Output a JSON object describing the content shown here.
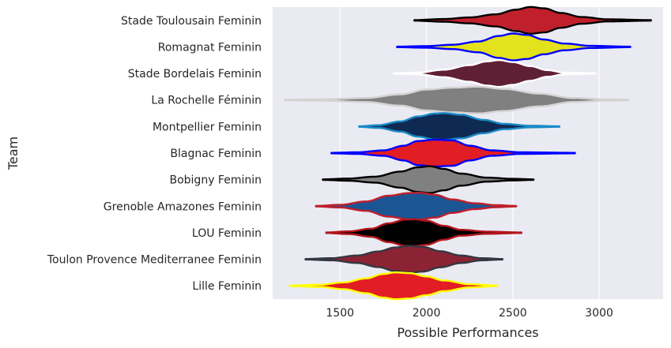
{
  "chart_data": {
    "type": "violin",
    "orientation": "horizontal",
    "xlabel": "Possible Performances",
    "ylabel": "Team",
    "xlim": [
      1110,
      3370
    ],
    "xticks": [
      1500,
      2000,
      2500,
      3000
    ],
    "grid": true,
    "background": "#eaeaf2",
    "series": [
      {
        "name": "Stade Toulousain Feminin",
        "fill": "#c0202c",
        "edge": "#000000",
        "min": 1930,
        "max": 3300,
        "profile": [
          [
            1930,
            0.02
          ],
          [
            2100,
            0.1
          ],
          [
            2250,
            0.22
          ],
          [
            2400,
            0.45
          ],
          [
            2520,
            0.8
          ],
          [
            2600,
            1.0
          ],
          [
            2680,
            0.9
          ],
          [
            2780,
            0.55
          ],
          [
            2900,
            0.25
          ],
          [
            3050,
            0.08
          ],
          [
            3300,
            0.02
          ]
        ]
      },
      {
        "name": "Romagnat Feminin",
        "fill": "#e3e21c",
        "edge": "#0000ff",
        "min": 1830,
        "max": 3180,
        "profile": [
          [
            1830,
            0.02
          ],
          [
            2000,
            0.06
          ],
          [
            2150,
            0.16
          ],
          [
            2300,
            0.4
          ],
          [
            2420,
            0.82
          ],
          [
            2500,
            1.0
          ],
          [
            2580,
            0.9
          ],
          [
            2680,
            0.55
          ],
          [
            2800,
            0.25
          ],
          [
            2950,
            0.08
          ],
          [
            3180,
            0.02
          ]
        ]
      },
      {
        "name": "Stade Bordelais Feminin",
        "fill": "#5f1f34",
        "edge": "#ffffff",
        "min": 1810,
        "max": 2980,
        "profile": [
          [
            1810,
            0.02
          ],
          [
            1950,
            0.06
          ],
          [
            2100,
            0.28
          ],
          [
            2250,
            0.62
          ],
          [
            2350,
            0.9
          ],
          [
            2420,
            1.0
          ],
          [
            2500,
            0.85
          ],
          [
            2600,
            0.55
          ],
          [
            2700,
            0.25
          ],
          [
            2800,
            0.06
          ],
          [
            2980,
            0.02
          ]
        ]
      },
      {
        "name": "La Rochelle Féminin",
        "fill": "#808080",
        "edge": "#d3d3d3",
        "min": 1180,
        "max": 3170,
        "profile": [
          [
            1180,
            0.02
          ],
          [
            1400,
            0.05
          ],
          [
            1650,
            0.15
          ],
          [
            1850,
            0.42
          ],
          [
            2000,
            0.78
          ],
          [
            2150,
            0.92
          ],
          [
            2300,
            1.0
          ],
          [
            2450,
            0.82
          ],
          [
            2650,
            0.48
          ],
          [
            2850,
            0.15
          ],
          [
            3050,
            0.04
          ],
          [
            3170,
            0.02
          ]
        ]
      },
      {
        "name": "Montpellier Feminin",
        "fill": "#0f2a52",
        "edge": "#1a8ac6",
        "min": 1610,
        "max": 2770,
        "profile": [
          [
            1610,
            0.02
          ],
          [
            1720,
            0.1
          ],
          [
            1850,
            0.38
          ],
          [
            1950,
            0.75
          ],
          [
            2050,
            0.97
          ],
          [
            2100,
            1.0
          ],
          [
            2200,
            0.88
          ],
          [
            2330,
            0.5
          ],
          [
            2450,
            0.2
          ],
          [
            2600,
            0.06
          ],
          [
            2770,
            0.02
          ]
        ]
      },
      {
        "name": "Blagnac Feminin",
        "fill": "#e21d23",
        "edge": "#0000ff",
        "min": 1450,
        "max": 2860,
        "profile": [
          [
            1450,
            0.02
          ],
          [
            1600,
            0.06
          ],
          [
            1750,
            0.2
          ],
          [
            1870,
            0.55
          ],
          [
            1950,
            0.9
          ],
          [
            2050,
            1.0
          ],
          [
            2150,
            0.95
          ],
          [
            2250,
            0.55
          ],
          [
            2380,
            0.2
          ],
          [
            2550,
            0.06
          ],
          [
            2860,
            0.02
          ]
        ]
      },
      {
        "name": "Bobigny Feminin",
        "fill": "#808080",
        "edge": "#000000",
        "min": 1400,
        "max": 2620,
        "profile": [
          [
            1400,
            0.02
          ],
          [
            1550,
            0.08
          ],
          [
            1700,
            0.22
          ],
          [
            1850,
            0.6
          ],
          [
            1950,
            0.92
          ],
          [
            2020,
            1.0
          ],
          [
            2100,
            0.8
          ],
          [
            2200,
            0.45
          ],
          [
            2350,
            0.15
          ],
          [
            2500,
            0.06
          ],
          [
            2620,
            0.02
          ]
        ]
      },
      {
        "name": "Grenoble Amazones Feminin",
        "fill": "#1b5594",
        "edge": "#c0202c",
        "min": 1360,
        "max": 2520,
        "profile": [
          [
            1360,
            0.02
          ],
          [
            1500,
            0.1
          ],
          [
            1650,
            0.35
          ],
          [
            1780,
            0.78
          ],
          [
            1900,
            0.98
          ],
          [
            1960,
            1.0
          ],
          [
            2050,
            0.85
          ],
          [
            2150,
            0.5
          ],
          [
            2280,
            0.22
          ],
          [
            2400,
            0.08
          ],
          [
            2520,
            0.02
          ]
        ]
      },
      {
        "name": "LOU Feminin",
        "fill": "#000000",
        "edge": "#b3151d",
        "min": 1420,
        "max": 2550,
        "profile": [
          [
            1420,
            0.02
          ],
          [
            1550,
            0.1
          ],
          [
            1680,
            0.3
          ],
          [
            1780,
            0.7
          ],
          [
            1880,
            0.98
          ],
          [
            1930,
            1.0
          ],
          [
            2000,
            0.9
          ],
          [
            2100,
            0.52
          ],
          [
            2200,
            0.22
          ],
          [
            2350,
            0.08
          ],
          [
            2550,
            0.02
          ]
        ]
      },
      {
        "name": "Toulon Provence Mediterranee Feminin",
        "fill": "#8c2334",
        "edge": "#333840",
        "min": 1300,
        "max": 2440,
        "profile": [
          [
            1300,
            0.02
          ],
          [
            1450,
            0.08
          ],
          [
            1600,
            0.28
          ],
          [
            1720,
            0.58
          ],
          [
            1820,
            0.88
          ],
          [
            1900,
            1.0
          ],
          [
            1980,
            0.92
          ],
          [
            2080,
            0.6
          ],
          [
            2200,
            0.28
          ],
          [
            2320,
            0.08
          ],
          [
            2440,
            0.02
          ]
        ]
      },
      {
        "name": "Lille Feminin",
        "fill": "#e21d23",
        "edge": "#ffff00",
        "min": 1210,
        "max": 2410,
        "profile": [
          [
            1210,
            0.02
          ],
          [
            1380,
            0.08
          ],
          [
            1520,
            0.25
          ],
          [
            1650,
            0.55
          ],
          [
            1750,
            0.88
          ],
          [
            1820,
            1.0
          ],
          [
            1900,
            0.95
          ],
          [
            2000,
            0.7
          ],
          [
            2100,
            0.4
          ],
          [
            2250,
            0.12
          ],
          [
            2410,
            0.02
          ]
        ]
      }
    ]
  }
}
